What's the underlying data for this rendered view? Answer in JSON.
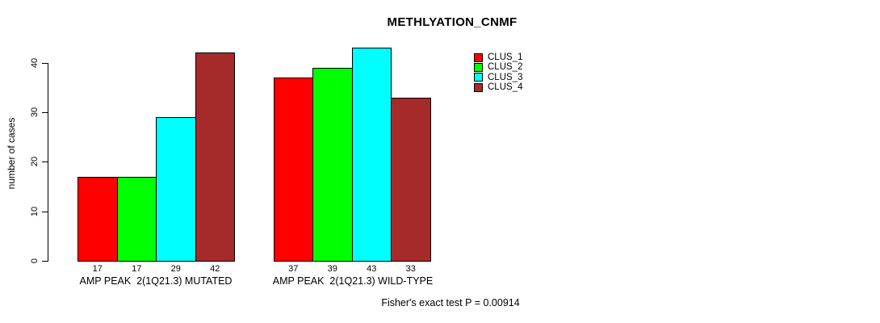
{
  "chart_data": {
    "type": "bar",
    "title": "METHLYATION_CNMF",
    "ylabel": "number of cases",
    "xlabel": "",
    "ylim": [
      0,
      43
    ],
    "yticks": [
      0,
      10,
      20,
      30,
      40
    ],
    "categories": [
      "AMP PEAK  2(1Q21.3) MUTATED",
      "AMP PEAK  2(1Q21.3) WILD-TYPE"
    ],
    "series": [
      {
        "name": "CLUS_1",
        "color": "#FF0000",
        "values": [
          17,
          37
        ]
      },
      {
        "name": "CLUS_2",
        "color": "#00FF00",
        "values": [
          17,
          39
        ]
      },
      {
        "name": "CLUS_3",
        "color": "#00FFFF",
        "values": [
          29,
          43
        ]
      },
      {
        "name": "CLUS_4",
        "color": "#A52A2A",
        "values": [
          42,
          33
        ]
      }
    ],
    "bar_value_labels": [
      [
        17,
        17,
        29,
        42
      ],
      [
        37,
        39,
        43,
        33
      ]
    ],
    "legend_position": "right",
    "annotation": "Fisher's exact test P = 0.00914",
    "grid": false,
    "bar_border_color": "#000000",
    "axis_color": "#000000",
    "text_color": "#000000",
    "background_color": "#FFFFFF"
  }
}
